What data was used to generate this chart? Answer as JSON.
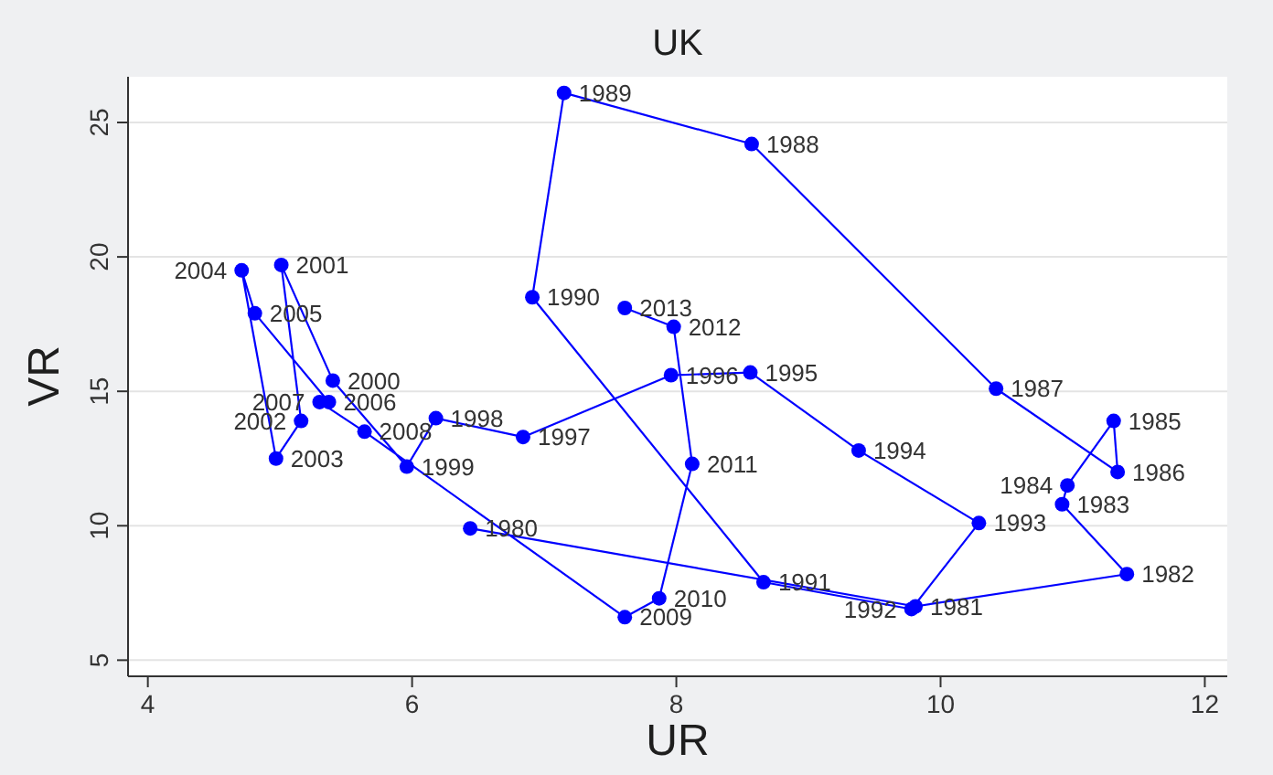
{
  "chart_data": {
    "type": "line",
    "title": "UK",
    "xlabel": "UR",
    "ylabel": "VR",
    "x": [
      6.44,
      9.81,
      11.41,
      10.92,
      10.96,
      11.31,
      11.34,
      10.42,
      8.57,
      7.15,
      6.91,
      8.66,
      9.78,
      10.29,
      9.38,
      8.56,
      7.96,
      6.84,
      6.18,
      5.96,
      5.4,
      5.01,
      5.16,
      4.97,
      4.71,
      4.81,
      5.37,
      5.3,
      5.64,
      7.61,
      7.87,
      8.12,
      7.98,
      7.61
    ],
    "values": [
      9.9,
      7.0,
      8.2,
      10.8,
      11.5,
      13.9,
      12.0,
      15.1,
      24.2,
      26.1,
      18.5,
      7.9,
      6.9,
      10.1,
      12.8,
      15.7,
      15.6,
      13.3,
      14.0,
      12.2,
      15.4,
      19.7,
      13.9,
      12.5,
      19.5,
      17.9,
      14.6,
      14.6,
      13.5,
      6.6,
      7.3,
      12.3,
      17.4,
      18.1
    ],
    "annotations": [
      {
        "text": "1980",
        "x": 6.44,
        "y": 9.9
      },
      {
        "text": "1981",
        "x": 9.81,
        "y": 7.0
      },
      {
        "text": "1982",
        "x": 11.41,
        "y": 8.2
      },
      {
        "text": "1983",
        "x": 10.92,
        "y": 10.8
      },
      {
        "text": "1984",
        "x": 10.96,
        "y": 11.5
      },
      {
        "text": "1985",
        "x": 11.31,
        "y": 13.9
      },
      {
        "text": "1986",
        "x": 11.34,
        "y": 12.0
      },
      {
        "text": "1987",
        "x": 10.42,
        "y": 15.1
      },
      {
        "text": "1988",
        "x": 8.57,
        "y": 24.2
      },
      {
        "text": "1989",
        "x": 7.15,
        "y": 26.1
      },
      {
        "text": "1990",
        "x": 6.91,
        "y": 18.5
      },
      {
        "text": "1991",
        "x": 8.66,
        "y": 7.9
      },
      {
        "text": "1992",
        "x": 9.78,
        "y": 6.9
      },
      {
        "text": "1993",
        "x": 10.29,
        "y": 10.1
      },
      {
        "text": "1994",
        "x": 9.38,
        "y": 12.8
      },
      {
        "text": "1995",
        "x": 8.56,
        "y": 15.7
      },
      {
        "text": "1996",
        "x": 7.96,
        "y": 15.6
      },
      {
        "text": "1997",
        "x": 6.84,
        "y": 13.3
      },
      {
        "text": "1998",
        "x": 6.18,
        "y": 14.0
      },
      {
        "text": "1999",
        "x": 5.96,
        "y": 12.2
      },
      {
        "text": "2000",
        "x": 5.4,
        "y": 15.4
      },
      {
        "text": "2001",
        "x": 5.01,
        "y": 19.7
      },
      {
        "text": "2002",
        "x": 5.16,
        "y": 13.9
      },
      {
        "text": "2003",
        "x": 4.97,
        "y": 12.5
      },
      {
        "text": "2004",
        "x": 4.71,
        "y": 19.5
      },
      {
        "text": "2005",
        "x": 4.81,
        "y": 17.9
      },
      {
        "text": "2006",
        "x": 5.37,
        "y": 14.6
      },
      {
        "text": "2007",
        "x": 5.3,
        "y": 14.6
      },
      {
        "text": "2008",
        "x": 5.64,
        "y": 13.5
      },
      {
        "text": "2009",
        "x": 7.61,
        "y": 6.6
      },
      {
        "text": "2010",
        "x": 7.87,
        "y": 7.3
      },
      {
        "text": "2011",
        "x": 8.12,
        "y": 12.3
      },
      {
        "text": "2012",
        "x": 7.98,
        "y": 17.4
      },
      {
        "text": "2013",
        "x": 7.61,
        "y": 18.1
      }
    ],
    "color": "#0000ff",
    "marker": "circle",
    "line_style": "solid",
    "xlim": [
      3.85,
      12.17
    ],
    "xticks": [
      4,
      6,
      8,
      10,
      12
    ],
    "ylim": [
      4.4,
      26.7
    ],
    "yticks": [
      5,
      10,
      15,
      20,
      25
    ],
    "grid": "y"
  }
}
